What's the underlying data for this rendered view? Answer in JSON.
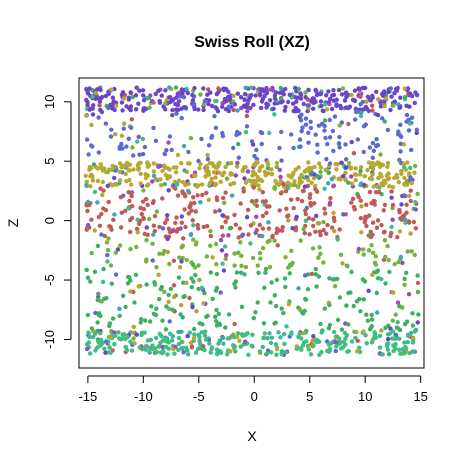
{
  "chart_data": {
    "type": "scatter",
    "title": "Swiss Roll (XZ)",
    "xlabel": "X",
    "ylabel": "Z",
    "xlim": [
      -15.8,
      15.3
    ],
    "ylim": [
      -12.4,
      12.0
    ],
    "xticks": [
      -15,
      -10,
      -5,
      0,
      5,
      10,
      15
    ],
    "yticks": [
      -10,
      -5,
      0,
      5,
      10
    ],
    "xtick_labels": [
      "-15",
      "-10",
      "-5",
      "0",
      "5",
      "10",
      "15"
    ],
    "ytick_labels": [
      "-10",
      "-5",
      "0",
      "5",
      "10"
    ],
    "grid": false,
    "legend": "none",
    "point_count": 2000,
    "bands": [
      {
        "z_min": 9.2,
        "z_max": 11.2,
        "count": 420,
        "color": "#6a45c9"
      },
      {
        "z_min": 5.0,
        "z_max": 9.2,
        "count": 170,
        "color": "#5b6ad0"
      },
      {
        "z_min": 2.8,
        "z_max": 4.9,
        "count": 380,
        "color": "#b8a833"
      },
      {
        "z_min": -1.5,
        "z_max": 2.8,
        "count": 330,
        "color": "#c05a57"
      },
      {
        "z_min": -4.0,
        "z_max": -1.5,
        "count": 110,
        "color": "#73b43b"
      },
      {
        "z_min": -9.3,
        "z_max": -4.0,
        "count": 240,
        "color": "#3cb060"
      },
      {
        "z_min": -11.3,
        "z_max": -9.3,
        "count": 350,
        "color": "#3ebd86"
      }
    ],
    "palette": [
      "#6a45c9",
      "#5b6ad0",
      "#9a48c4",
      "#b8a833",
      "#c05a57",
      "#b6a338",
      "#73b43b",
      "#3cb060",
      "#3ebd86",
      "#3aa8b2"
    ]
  }
}
